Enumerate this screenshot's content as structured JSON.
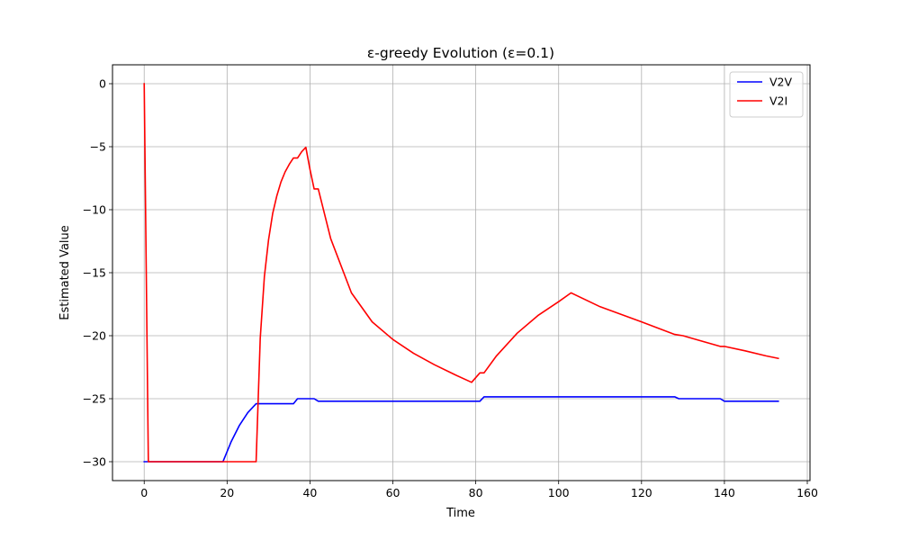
{
  "chart_data": {
    "type": "line",
    "title": "ε-greedy Evolution (ε=0.1)",
    "xlabel": "Time",
    "ylabel": "Estimated Value",
    "xlim": [
      -7.65,
      160.65
    ],
    "ylim": [
      -31.5,
      1.5
    ],
    "xticks": [
      0,
      20,
      40,
      60,
      80,
      100,
      120,
      140,
      160
    ],
    "xtick_labels": [
      "0",
      "20",
      "40",
      "60",
      "80",
      "100",
      "120",
      "140",
      "160"
    ],
    "yticks": [
      0,
      -5,
      -10,
      -15,
      -20,
      -25,
      -30
    ],
    "ytick_labels": [
      "0",
      "−5",
      "−10",
      "−15",
      "−20",
      "−25",
      "−30"
    ],
    "grid": true,
    "legend_position": "top-right",
    "series": [
      {
        "name": "V2V",
        "color": "#0000ff",
        "x": [
          0,
          19,
          21,
          23,
          25,
          27,
          28,
          29,
          36,
          37,
          40,
          41,
          42,
          81,
          82,
          128,
          129,
          139,
          140,
          153
        ],
        "y": [
          -30,
          -30,
          -28.4,
          -27.1,
          -26.1,
          -25.4,
          -25.4,
          -25.4,
          -25.4,
          -25.0,
          -25.0,
          -25.0,
          -25.2,
          -25.2,
          -24.85,
          -24.85,
          -25.0,
          -25.0,
          -25.2,
          -25.2
        ]
      },
      {
        "name": "V2I",
        "color": "#ff0000",
        "x": [
          0,
          1,
          27,
          28,
          29,
          30,
          31,
          32,
          33,
          34,
          35,
          36,
          37,
          38,
          39,
          40,
          41,
          42,
          45,
          50,
          55,
          60,
          65,
          70,
          75,
          79,
          81,
          82,
          85,
          90,
          95,
          100,
          103,
          110,
          120,
          128,
          129,
          130,
          139,
          140,
          145,
          150,
          153
        ],
        "y": [
          0,
          -30,
          -30,
          -20.2,
          -15.3,
          -12.4,
          -10.3,
          -8.9,
          -7.8,
          -7.0,
          -6.4,
          -5.9,
          -5.9,
          -5.4,
          -5.05,
          -6.8,
          -8.35,
          -8.35,
          -12.3,
          -16.6,
          -18.9,
          -20.3,
          -21.4,
          -22.3,
          -23.1,
          -23.7,
          -22.95,
          -22.95,
          -21.6,
          -19.8,
          -18.4,
          -17.3,
          -16.6,
          -17.7,
          -18.9,
          -19.9,
          -19.95,
          -20.0,
          -20.85,
          -20.85,
          -21.2,
          -21.6,
          -21.8
        ]
      }
    ]
  }
}
